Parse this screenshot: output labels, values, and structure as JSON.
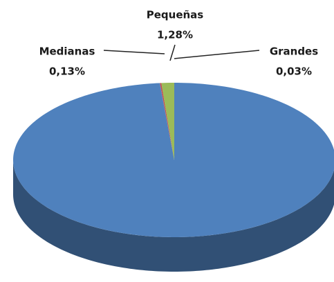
{
  "chart_data": {
    "type": "pie3d",
    "categories": [
      null,
      "Grandes",
      "Medianas",
      "Pequeñas"
    ],
    "values": [
      98.56,
      0.03,
      0.13,
      1.28
    ],
    "value_labels": [
      null,
      "0,03%",
      "0,13%",
      "1,28%"
    ],
    "colors": [
      "#4f81bd",
      "#8064a2",
      "#c0504d",
      "#9bbb59"
    ]
  }
}
